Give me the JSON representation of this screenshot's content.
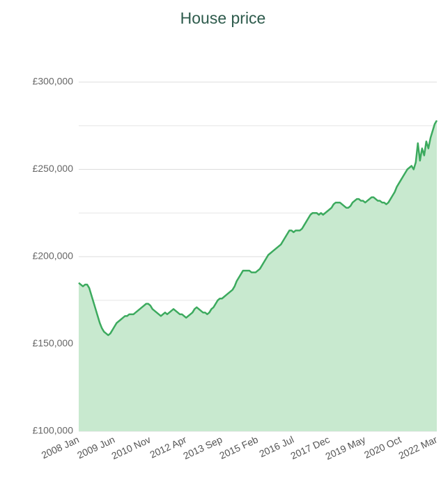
{
  "chart_data": {
    "type": "area",
    "title": "House price",
    "categories": [
      "2008 Jan",
      null,
      null,
      null,
      null,
      null,
      null,
      null,
      null,
      null,
      null,
      null,
      null,
      null,
      null,
      null,
      null,
      "2009 Jun",
      null,
      null,
      null,
      null,
      null,
      null,
      null,
      null,
      null,
      null,
      null,
      null,
      null,
      null,
      null,
      null,
      "2010 Nov",
      null,
      null,
      null,
      null,
      null,
      null,
      null,
      null,
      null,
      null,
      null,
      null,
      null,
      null,
      null,
      null,
      "2012 Apr",
      null,
      null,
      null,
      null,
      null,
      null,
      null,
      null,
      null,
      null,
      null,
      null,
      null,
      null,
      null,
      null,
      "2013 Sep",
      null,
      null,
      null,
      null,
      null,
      null,
      null,
      null,
      null,
      null,
      null,
      null,
      null,
      null,
      null,
      null,
      "2015 Feb",
      null,
      null,
      null,
      null,
      null,
      null,
      null,
      null,
      null,
      null,
      null,
      null,
      null,
      null,
      null,
      null,
      "2016 Jul",
      null,
      null,
      null,
      null,
      null,
      null,
      null,
      null,
      null,
      null,
      null,
      null,
      null,
      null,
      null,
      null,
      "2017 Dec",
      null,
      null,
      null,
      null,
      null,
      null,
      null,
      null,
      null,
      null,
      null,
      null,
      null,
      null,
      null,
      null,
      "2019 May",
      null,
      null,
      null,
      null,
      null,
      null,
      null,
      null,
      null,
      null,
      null,
      null,
      null,
      null,
      null,
      null,
      "2020 Oct",
      null,
      null,
      null,
      null,
      null,
      null,
      null,
      null,
      null,
      null,
      null,
      null,
      null,
      null,
      null,
      null,
      "2022 Mar"
    ],
    "values": [
      185000,
      184000,
      183000,
      184000,
      184000,
      182000,
      178000,
      174000,
      170000,
      166000,
      162000,
      159000,
      157000,
      156000,
      155000,
      156000,
      158000,
      160000,
      162000,
      163000,
      164000,
      165000,
      166000,
      166000,
      167000,
      167000,
      167000,
      168000,
      169000,
      170000,
      171000,
      172000,
      173000,
      173000,
      172000,
      170000,
      169000,
      168000,
      167000,
      166000,
      167000,
      168000,
      167000,
      168000,
      169000,
      170000,
      169000,
      168000,
      167000,
      167000,
      166000,
      165000,
      166000,
      167000,
      168000,
      170000,
      171000,
      170000,
      169000,
      168000,
      168000,
      167000,
      168000,
      170000,
      171000,
      173000,
      175000,
      176000,
      176000,
      177000,
      178000,
      179000,
      180000,
      181000,
      183000,
      186000,
      188000,
      190000,
      192000,
      192000,
      192000,
      192000,
      191000,
      191000,
      191000,
      192000,
      193000,
      195000,
      197000,
      199000,
      201000,
      202000,
      203000,
      204000,
      205000,
      206000,
      207000,
      209000,
      211000,
      213000,
      215000,
      215000,
      214000,
      215000,
      215000,
      215000,
      216000,
      218000,
      220000,
      222000,
      224000,
      225000,
      225000,
      225000,
      224000,
      225000,
      224000,
      225000,
      226000,
      227000,
      228000,
      230000,
      231000,
      231000,
      231000,
      230000,
      229000,
      228000,
      228000,
      229000,
      231000,
      232000,
      233000,
      233000,
      232000,
      232000,
      231000,
      232000,
      233000,
      234000,
      234000,
      233000,
      232000,
      232000,
      231000,
      231000,
      230000,
      231000,
      233000,
      235000,
      237000,
      240000,
      242000,
      244000,
      246000,
      248000,
      250000,
      251000,
      252000,
      250000,
      254000,
      265000,
      255000,
      262000,
      258000,
      266000,
      262000,
      268000,
      272000,
      276000,
      278000
    ],
    "color": "#3caa5e",
    "fill": "#c8e9cf",
    "ylim": [
      100000,
      300000
    ],
    "yticks": [
      {
        "value": 100000,
        "label": "£100,000"
      },
      {
        "value": 150000,
        "label": "£150,000"
      },
      {
        "value": 200000,
        "label": "£200,000"
      },
      {
        "value": 250000,
        "label": "£250,000"
      },
      {
        "value": 300000,
        "label": "£300,000"
      }
    ],
    "yminor": [
      125000,
      175000,
      225000,
      275000
    ],
    "grid": true
  }
}
